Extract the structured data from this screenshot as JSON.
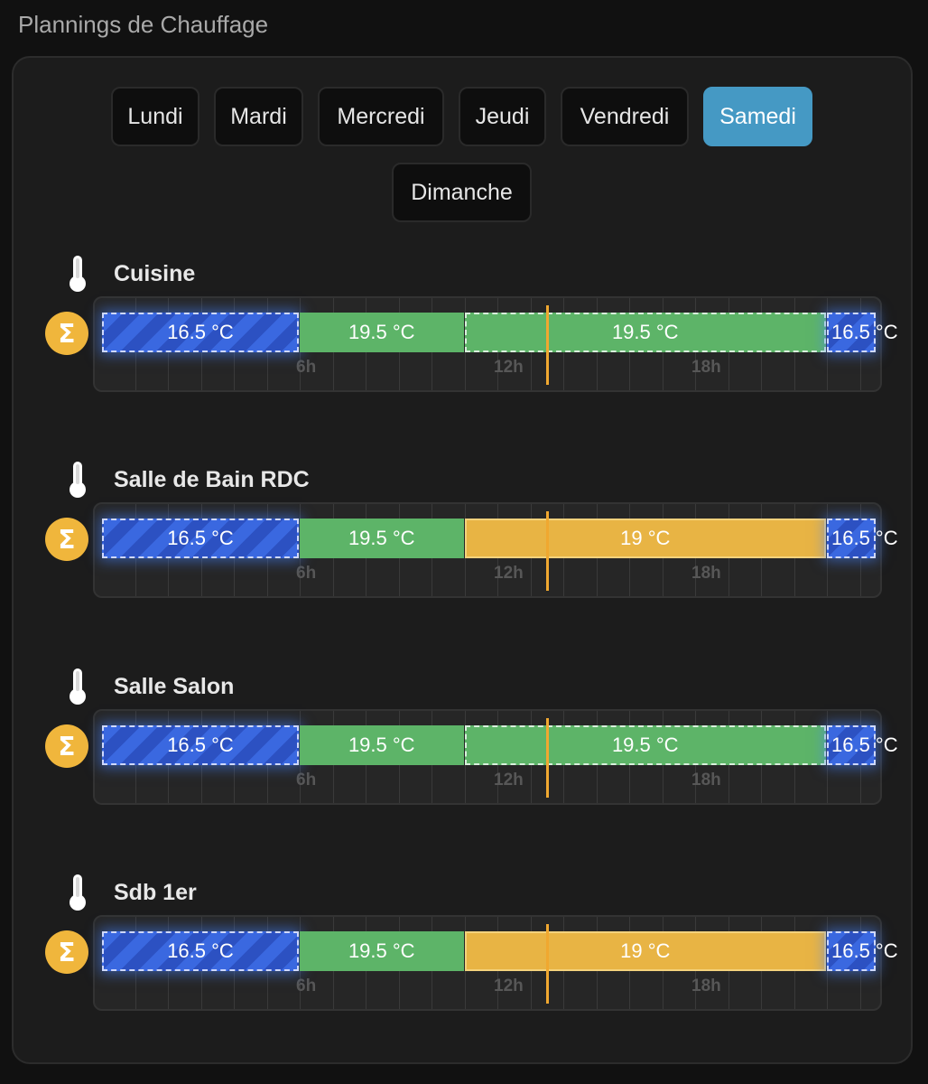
{
  "header": {
    "title": "Plannings de Chauffage"
  },
  "days": [
    {
      "label": "Lundi",
      "active": false
    },
    {
      "label": "Mardi",
      "active": false
    },
    {
      "label": "Mercredi",
      "active": false
    },
    {
      "label": "Jeudi",
      "active": false
    },
    {
      "label": "Vendredi",
      "active": false
    },
    {
      "label": "Samedi",
      "active": true
    },
    {
      "label": "Dimanche",
      "active": false
    }
  ],
  "hour_labels": [
    "6h",
    "12h",
    "18h"
  ],
  "current_time_hour": 13.5,
  "colors": {
    "accent": "#4599c4",
    "eco": "#3a68e0",
    "comfort": "#5db468",
    "boost": "#e8b444",
    "now_line": "#f0a830"
  },
  "rooms": [
    {
      "name": "Cuisine",
      "icon": "thermometer-icon",
      "mode_icon": "sigma-icon",
      "mode_symbol": "Σ",
      "segments": [
        {
          "start": 0,
          "end": 6,
          "label": "16.5 °C",
          "type": "blue"
        },
        {
          "start": 6,
          "end": 11,
          "label": "19.5 °C",
          "type": "green"
        },
        {
          "start": 11,
          "end": 22,
          "label": "19.5 °C",
          "type": "green-dashed"
        },
        {
          "start": 22,
          "end": 24,
          "label": "16.5 °C",
          "type": "blue"
        }
      ]
    },
    {
      "name": "Salle de Bain RDC",
      "icon": "thermometer-icon",
      "mode_icon": "sigma-icon",
      "mode_symbol": "Σ",
      "segments": [
        {
          "start": 0,
          "end": 6,
          "label": "16.5 °C",
          "type": "blue"
        },
        {
          "start": 6,
          "end": 11,
          "label": "19.5 °C",
          "type": "green"
        },
        {
          "start": 11,
          "end": 22,
          "label": "19 °C",
          "type": "orange"
        },
        {
          "start": 22,
          "end": 24,
          "label": "16.5 °C",
          "type": "blue"
        }
      ]
    },
    {
      "name": "Salle Salon",
      "icon": "thermometer-icon",
      "mode_icon": "sigma-icon",
      "mode_symbol": "Σ",
      "segments": [
        {
          "start": 0,
          "end": 6,
          "label": "16.5 °C",
          "type": "blue"
        },
        {
          "start": 6,
          "end": 11,
          "label": "19.5 °C",
          "type": "green"
        },
        {
          "start": 11,
          "end": 22,
          "label": "19.5 °C",
          "type": "green-dashed"
        },
        {
          "start": 22,
          "end": 24,
          "label": "16.5 °C",
          "type": "blue"
        }
      ]
    },
    {
      "name": "Sdb 1er",
      "icon": "thermometer-icon",
      "mode_icon": "sigma-icon",
      "mode_symbol": "Σ",
      "segments": [
        {
          "start": 0,
          "end": 6,
          "label": "16.5 °C",
          "type": "blue"
        },
        {
          "start": 6,
          "end": 11,
          "label": "19.5 °C",
          "type": "green"
        },
        {
          "start": 11,
          "end": 22,
          "label": "19 °C",
          "type": "orange"
        },
        {
          "start": 22,
          "end": 24,
          "label": "16.5 °C",
          "type": "blue"
        }
      ]
    }
  ]
}
